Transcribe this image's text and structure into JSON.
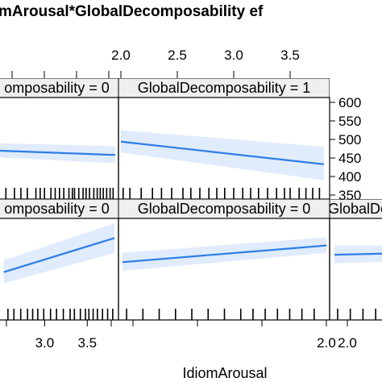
{
  "chart_data": {
    "type": "line",
    "title": "mArousal*GlobalDecomposability ef",
    "xlabel": "IdiomArousal",
    "ylabel": "",
    "xlim": [
      1.0,
      3.8
    ],
    "ylim": [
      340,
      620
    ],
    "y_ticks": [
      "350",
      "400",
      "450",
      "500",
      "550",
      "600"
    ],
    "y_tick_values": [
      350,
      400,
      450,
      500,
      550,
      600
    ],
    "x_ticks_top": [
      "2.0",
      "2.5",
      "3.0",
      "3.5"
    ],
    "x_ticks_top_values": [
      2.0,
      2.5,
      3.0,
      3.5
    ],
    "x_ticks_bottom_left": [
      "3.0",
      "3.5"
    ],
    "x_ticks_bottom_left_values": [
      3.0,
      3.5
    ],
    "x_ticks_bottom_mid": [
      "2.0"
    ],
    "x_ticks_bottom_right": [
      "2.0"
    ],
    "grid": false,
    "panels": [
      {
        "id": "top-left",
        "strip": "omposability = 0",
        "fit": [
          [
            1.0,
            470
          ],
          [
            3.8,
            458
          ]
        ],
        "band_upper": [
          [
            1.0,
            490
          ],
          [
            3.8,
            482
          ]
        ],
        "band_lower": [
          [
            1.0,
            452
          ],
          [
            3.8,
            436
          ]
        ],
        "rug": [
          1.05,
          1.25,
          1.45,
          1.6,
          1.75,
          1.95,
          2.05,
          2.15,
          2.3,
          2.4,
          2.5,
          2.6,
          2.72,
          2.8,
          2.85,
          2.95,
          3.05,
          3.12,
          3.2,
          3.3,
          3.38,
          3.45,
          3.52,
          3.6,
          3.68,
          3.75
        ]
      },
      {
        "id": "top-right",
        "strip": "GlobalDecomposability = 1",
        "fit": [
          [
            2.0,
            494
          ],
          [
            3.8,
            433
          ]
        ],
        "band_upper": [
          [
            2.0,
            525
          ],
          [
            3.8,
            480
          ]
        ],
        "band_lower": [
          [
            2.0,
            465
          ],
          [
            3.8,
            390
          ]
        ],
        "rug": [
          2.02,
          2.08,
          2.18,
          2.28,
          2.36,
          2.45,
          2.55,
          2.62,
          2.7,
          2.78,
          2.85,
          2.92,
          3.0,
          3.08,
          3.15,
          3.22,
          3.3,
          3.38,
          3.45,
          3.5,
          3.58,
          3.64,
          3.7,
          3.76
        ]
      },
      {
        "id": "bottom-left",
        "strip": "omposability = 0",
        "fit": [
          [
            2.5,
            468
          ],
          [
            3.8,
            560
          ]
        ],
        "band_upper": [
          [
            2.5,
            500
          ],
          [
            3.8,
            600
          ]
        ],
        "band_lower": [
          [
            2.5,
            438
          ],
          [
            3.8,
            520
          ]
        ],
        "rug": [
          2.55,
          2.62,
          2.7,
          2.78,
          2.84,
          2.9,
          2.97,
          3.05,
          3.12,
          3.2,
          3.28,
          3.33,
          3.4,
          3.46,
          3.5,
          3.55,
          3.6,
          3.66,
          3.72,
          3.78
        ]
      },
      {
        "id": "bottom-mid",
        "strip": "GlobalDecomposability = 0",
        "fit": [
          [
            1.0,
            495
          ],
          [
            2.0,
            540
          ]
        ],
        "band_upper": [
          [
            1.0,
            520
          ],
          [
            2.0,
            562
          ]
        ],
        "band_lower": [
          [
            1.0,
            472
          ],
          [
            2.0,
            520
          ]
        ],
        "rug": [
          1.02,
          1.1,
          1.18,
          1.26,
          1.34,
          1.42,
          1.5,
          1.58,
          1.64,
          1.7,
          1.76,
          1.82,
          1.88,
          1.94
        ]
      },
      {
        "id": "bottom-right",
        "strip": "GlobalDe",
        "fit": [
          [
            2.0,
            515
          ],
          [
            2.3,
            518
          ]
        ],
        "band_upper": [
          [
            2.0,
            540
          ],
          [
            2.3,
            540
          ]
        ],
        "band_lower": [
          [
            2.0,
            492
          ],
          [
            2.3,
            496
          ]
        ],
        "rug": [
          2.02,
          2.1,
          2.18,
          2.26
        ]
      }
    ]
  }
}
